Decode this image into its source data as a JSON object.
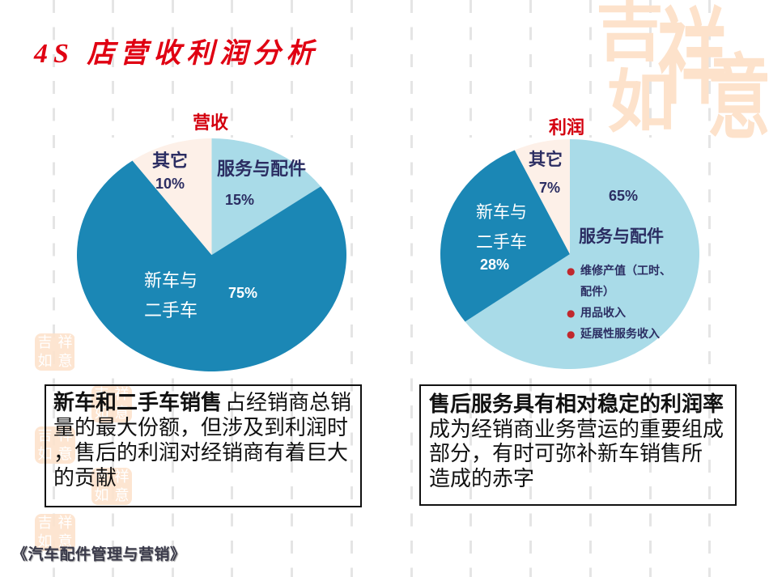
{
  "slide": {
    "title": "4S 店营收利润分析",
    "footer": "《汽车配件管理与营销》",
    "watermark_chars": [
      "吉",
      "祥",
      "如",
      "意"
    ]
  },
  "revenue_chart": {
    "title": "营收",
    "other": {
      "name": "其它",
      "pct": "10%"
    },
    "service": {
      "name": "服务与配件",
      "pct": "15%"
    },
    "new_used": {
      "name_line1": "新车与",
      "name_line2": "二手车",
      "pct": "75%"
    }
  },
  "profit_chart": {
    "title": "利润",
    "other": {
      "name": "其它",
      "pct": "7%"
    },
    "service": {
      "name": "服务与配件",
      "pct": "65%",
      "bullets": [
        "维修产值（工时、配件）",
        "用品收入",
        "延展性服务收入"
      ]
    },
    "new_used": {
      "name_line1": "新车与",
      "name_line2": "二手车",
      "pct": "28%"
    }
  },
  "left_note": {
    "bold": "新车和二手车销售",
    "lines": [
      "占经销商总销",
      "量的最大份额，但涉及到利润时",
      "，售后的利润对经销商有着巨大",
      "的贡献"
    ]
  },
  "right_note": {
    "bold": "售后服务具有相对稳定的利润率",
    "lines": [
      "成为经销商业务营运的重要组成",
      "部分，有时可弥补新车销售所",
      "造成的赤字"
    ]
  },
  "colors": {
    "title_red": "#e00012",
    "service_light_blue": "#a9dbe8",
    "new_used_dark_blue": "#1b87b5",
    "other_beige": "#fdf0e8",
    "label_navy": "#2b2d62",
    "bullet_red": "#c0282d",
    "watermark_peach": "#fde2cb"
  },
  "chart_data": [
    {
      "type": "pie",
      "title": "营收",
      "categories": [
        "服务与配件",
        "新车与二手车",
        "其它"
      ],
      "values": [
        15,
        75,
        10
      ],
      "unit": "%",
      "colors": [
        "#a9dbe8",
        "#1b87b5",
        "#fdf0e8"
      ],
      "start_angle": "12 o'clock",
      "direction": "clockwise",
      "legend": "none (labels inside slices)"
    },
    {
      "type": "pie",
      "title": "利润",
      "categories": [
        "服务与配件",
        "新车与二手车",
        "其它"
      ],
      "values": [
        65,
        28,
        7
      ],
      "unit": "%",
      "colors": [
        "#a9dbe8",
        "#1b87b5",
        "#fdf0e8"
      ],
      "start_angle": "12 o'clock",
      "direction": "clockwise",
      "annotations": [
        "维修产值（工时、配件）",
        "用品收入",
        "延展性服务收入"
      ],
      "legend": "none (labels inside slices)"
    }
  ]
}
